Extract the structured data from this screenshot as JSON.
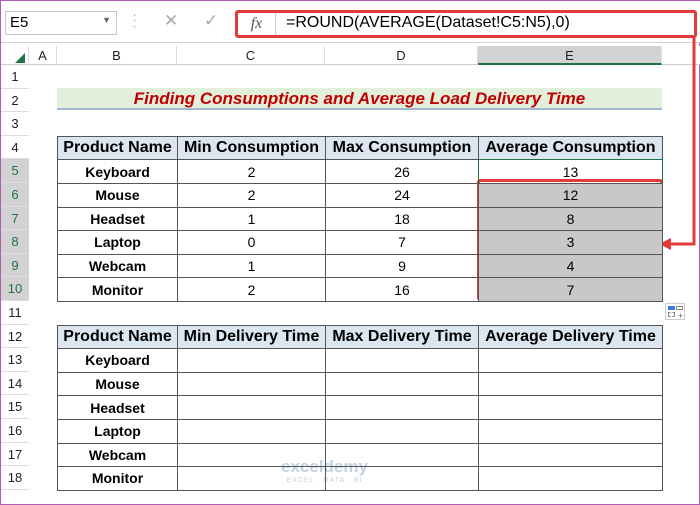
{
  "name_box": "E5",
  "formula_bar": {
    "fx_label": "fx",
    "formula": "=ROUND(AVERAGE(Dataset!C5:N5),0)"
  },
  "columns": [
    "A",
    "B",
    "C",
    "D",
    "E"
  ],
  "rows": [
    "1",
    "2",
    "3",
    "4",
    "5",
    "6",
    "7",
    "8",
    "9",
    "10",
    "11",
    "12",
    "13",
    "14",
    "15",
    "16",
    "17",
    "18"
  ],
  "title": "Finding Consumptions and Average Load Delivery Time",
  "table1": {
    "headers": [
      "Product Name",
      "Min Consumption",
      "Max Consumption",
      "Average Consumption"
    ],
    "rows": [
      [
        "Keyboard",
        "2",
        "26",
        "13"
      ],
      [
        "Mouse",
        "2",
        "24",
        "12"
      ],
      [
        "Headset",
        "1",
        "18",
        "8"
      ],
      [
        "Laptop",
        "0",
        "7",
        "3"
      ],
      [
        "Webcam",
        "1",
        "9",
        "4"
      ],
      [
        "Monitor",
        "2",
        "16",
        "7"
      ]
    ]
  },
  "table2": {
    "headers": [
      "Product Name",
      "Min Delivery Time",
      "Max Delivery Time",
      "Average Delivery Time"
    ],
    "rows": [
      [
        "Keyboard",
        "",
        "",
        ""
      ],
      [
        "Mouse",
        "",
        "",
        ""
      ],
      [
        "Headset",
        "",
        "",
        ""
      ],
      [
        "Laptop",
        "",
        "",
        ""
      ],
      [
        "Webcam",
        "",
        "",
        ""
      ],
      [
        "Monitor",
        "",
        "",
        ""
      ]
    ]
  },
  "watermark": {
    "name": "exceldemy",
    "tagline": "EXCEL · DATA · BI"
  },
  "colors": {
    "highlight": "#e5393b",
    "title": "#c00000",
    "header_bg": "#dce6f1",
    "selected_bg": "#c8c8c8"
  }
}
